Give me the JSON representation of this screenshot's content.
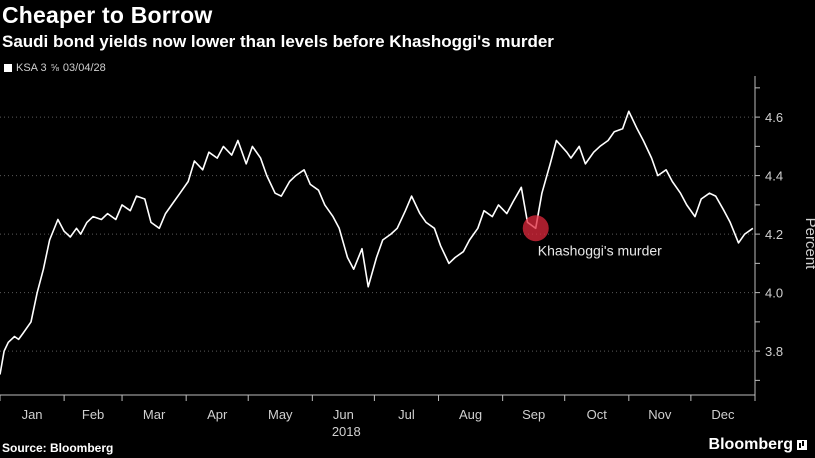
{
  "header": {
    "title": "Cheaper to Borrow",
    "subtitle": "Saudi bond yields now lower than levels before Khashoggi's murder"
  },
  "legend": {
    "series_label": "KSA 3 ",
    "bond_icon": "bond-icon",
    "series_date": "03/04/28"
  },
  "footer": {
    "source": "Source: Bloomberg",
    "brand": "Bloomberg"
  },
  "colors": {
    "background": "#000000",
    "line": "#ffffff",
    "grid": "#5a5a5a",
    "marker": "#e0283c"
  },
  "chart_data": {
    "type": "line",
    "title": "Cheaper to Borrow",
    "subtitle": "Saudi bond yields now lower than levels before Khashoggi's murder",
    "xlabel": "2018",
    "ylabel": "Percent",
    "ylim": [
      3.65,
      4.72
    ],
    "yticks": [
      3.8,
      4.0,
      4.2,
      4.4,
      4.6
    ],
    "ytick_labels": [
      "3.8",
      "4.0",
      "4.2",
      "4.4",
      "4.6"
    ],
    "x_categories": [
      "Jan",
      "Feb",
      "Mar",
      "Apr",
      "May",
      "Jun",
      "Jul",
      "Aug",
      "Sep",
      "Oct",
      "Nov",
      "Dec"
    ],
    "grid": "horizontal dotted",
    "y_axis_side": "right",
    "series": [
      {
        "x": [
          "2018-01-01",
          "2018-01-03",
          "2018-01-05",
          "2018-01-08",
          "2018-01-10",
          "2018-01-12",
          "2018-01-16",
          "2018-01-19",
          "2018-01-22",
          "2018-01-25",
          "2018-01-29",
          "2018-02-01",
          "2018-02-04",
          "2018-02-07",
          "2018-02-09",
          "2018-02-12",
          "2018-02-15",
          "2018-02-19",
          "2018-02-22",
          "2018-02-26",
          "2018-03-01",
          "2018-03-05",
          "2018-03-08",
          "2018-03-12",
          "2018-03-15",
          "2018-03-19",
          "2018-03-22",
          "2018-03-26",
          "2018-03-29",
          "2018-04-02",
          "2018-04-05",
          "2018-04-09",
          "2018-04-12",
          "2018-04-16",
          "2018-04-19",
          "2018-04-23",
          "2018-04-26",
          "2018-04-30",
          "2018-05-03",
          "2018-05-07",
          "2018-05-10",
          "2018-05-14",
          "2018-05-17",
          "2018-05-21",
          "2018-05-24",
          "2018-05-28",
          "2018-05-31",
          "2018-06-04",
          "2018-06-07",
          "2018-06-11",
          "2018-06-14",
          "2018-06-18",
          "2018-06-21",
          "2018-06-25",
          "2018-06-28",
          "2018-07-02",
          "2018-07-05",
          "2018-07-09",
          "2018-07-12",
          "2018-07-16",
          "2018-07-19",
          "2018-07-23",
          "2018-07-26",
          "2018-07-30",
          "2018-08-02",
          "2018-08-06",
          "2018-08-09",
          "2018-08-13",
          "2018-08-16",
          "2018-08-20",
          "2018-08-23",
          "2018-08-27",
          "2018-08-30",
          "2018-09-03",
          "2018-09-06",
          "2018-09-10",
          "2018-09-13",
          "2018-09-17",
          "2018-09-20",
          "2018-09-24",
          "2018-09-27",
          "2018-10-02",
          "2018-10-04",
          "2018-10-08",
          "2018-10-11",
          "2018-10-15",
          "2018-10-18",
          "2018-10-22",
          "2018-10-25",
          "2018-10-29",
          "2018-11-01",
          "2018-11-05",
          "2018-11-08",
          "2018-11-12",
          "2018-11-15",
          "2018-11-19",
          "2018-11-22",
          "2018-11-26",
          "2018-11-29",
          "2018-12-03",
          "2018-12-06",
          "2018-12-10",
          "2018-12-13",
          "2018-12-17",
          "2018-12-20",
          "2018-12-24",
          "2018-12-27",
          "2018-12-31"
        ],
        "values": [
          3.72,
          3.8,
          3.83,
          3.85,
          3.84,
          3.86,
          3.9,
          4.0,
          4.08,
          4.18,
          4.25,
          4.21,
          4.19,
          4.22,
          4.2,
          4.24,
          4.26,
          4.25,
          4.27,
          4.25,
          4.3,
          4.28,
          4.33,
          4.32,
          4.24,
          4.22,
          4.27,
          4.31,
          4.34,
          4.38,
          4.45,
          4.42,
          4.48,
          4.46,
          4.5,
          4.47,
          4.52,
          4.44,
          4.5,
          4.46,
          4.4,
          4.34,
          4.33,
          4.38,
          4.4,
          4.42,
          4.37,
          4.35,
          4.3,
          4.26,
          4.22,
          4.12,
          4.08,
          4.15,
          4.02,
          4.12,
          4.18,
          4.2,
          4.22,
          4.28,
          4.33,
          4.27,
          4.24,
          4.22,
          4.16,
          4.1,
          4.12,
          4.14,
          4.18,
          4.22,
          4.28,
          4.26,
          4.3,
          4.27,
          4.31,
          4.36,
          4.24,
          4.22,
          4.34,
          4.44,
          4.52,
          4.48,
          4.46,
          4.5,
          4.44,
          4.48,
          4.5,
          4.52,
          4.55,
          4.56,
          4.62,
          4.56,
          4.52,
          4.46,
          4.4,
          4.42,
          4.38,
          4.34,
          4.3,
          4.26,
          4.32,
          4.34,
          4.33,
          4.28,
          4.24,
          4.17,
          4.2,
          4.22
        ]
      }
    ],
    "annotations": [
      {
        "text": "Khashoggi's murder",
        "x": "2018-09-17",
        "y": 4.22
      }
    ]
  }
}
